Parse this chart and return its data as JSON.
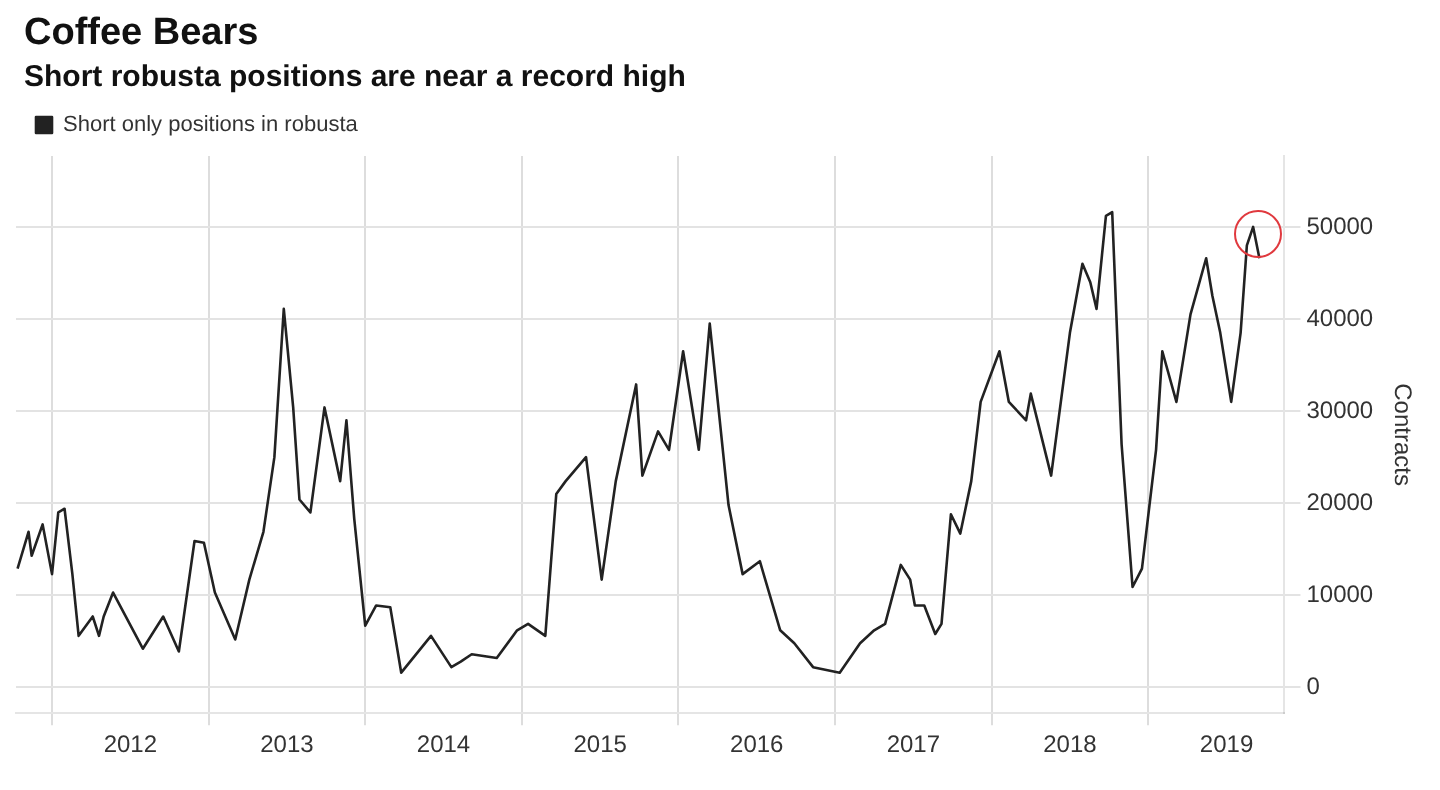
{
  "chart_data": {
    "type": "line",
    "title": "Coffee Bears",
    "subtitle": "Short robusta positions are near a record high",
    "ylabel": "Contracts",
    "x": [
      2011.78,
      2011.85,
      2011.87,
      2011.94,
      2012.0,
      2012.04,
      2012.08,
      2012.13,
      2012.17,
      2012.26,
      2012.3,
      2012.33,
      2012.39,
      2012.58,
      2012.71,
      2012.81,
      2012.91,
      2012.97,
      2013.04,
      2013.17,
      2013.26,
      2013.35,
      2013.42,
      2013.48,
      2013.54,
      2013.58,
      2013.65,
      2013.74,
      2013.84,
      2013.88,
      2013.93,
      2014.0,
      2014.07,
      2014.16,
      2014.23,
      2014.42,
      2014.55,
      2014.61,
      2014.68,
      2014.84,
      2014.97,
      2015.04,
      2015.15,
      2015.22,
      2015.28,
      2015.41,
      2015.51,
      2015.6,
      2015.73,
      2015.77,
      2015.87,
      2015.94,
      2016.03,
      2016.13,
      2016.2,
      2016.32,
      2016.41,
      2016.52,
      2016.65,
      2016.74,
      2016.86,
      2017.03,
      2017.16,
      2017.25,
      2017.32,
      2017.42,
      2017.48,
      2017.51,
      2017.57,
      2017.64,
      2017.68,
      2017.74,
      2017.8,
      2017.87,
      2017.93,
      2018.05,
      2018.11,
      2018.22,
      2018.25,
      2018.38,
      2018.5,
      2018.58,
      2018.63,
      2018.67,
      2018.73,
      2018.77,
      2018.83,
      2018.9,
      2018.96,
      2019.05,
      2019.09,
      2019.18,
      2019.27,
      2019.37,
      2019.41,
      2019.46,
      2019.53,
      2019.59,
      2019.63,
      2019.67,
      2019.71
    ],
    "series": [
      {
        "name": "Short only positions in robusta",
        "color": "#222222",
        "values": [
          12900,
          16900,
          14300,
          17700,
          12300,
          19000,
          19400,
          12300,
          5600,
          7700,
          5600,
          7700,
          10300,
          4200,
          7700,
          3900,
          15900,
          15700,
          10300,
          5200,
          11700,
          16900,
          25000,
          41100,
          30400,
          20400,
          19000,
          30400,
          22400,
          29000,
          18300,
          6700,
          8900,
          8700,
          1600,
          5600,
          2200,
          2800,
          3600,
          3200,
          6200,
          6900,
          5600,
          21000,
          22400,
          25000,
          11700,
          22400,
          32900,
          23000,
          27800,
          25800,
          36500,
          25800,
          39500,
          19800,
          12300,
          13700,
          6200,
          4800,
          2200,
          1600,
          4800,
          6200,
          6900,
          13300,
          11700,
          8900,
          8900,
          5800,
          6900,
          18800,
          16700,
          22400,
          31000,
          36500,
          31000,
          29000,
          31900,
          23000,
          38500,
          46000,
          44000,
          41100,
          51200,
          51600,
          26400,
          10900,
          12900,
          25800,
          36500,
          31000,
          40500,
          46600,
          42500,
          38500,
          31000,
          38500,
          48000,
          50000,
          46600
        ]
      }
    ],
    "xlim": [
      2011.77,
      2019.87
    ],
    "xticks": [
      {
        "value": 2012,
        "label": null
      },
      {
        "value": 2012.5,
        "label": "2012"
      },
      {
        "value": 2013,
        "label": null
      },
      {
        "value": 2013.5,
        "label": "2013"
      },
      {
        "value": 2014,
        "label": null
      },
      {
        "value": 2014.5,
        "label": "2014"
      },
      {
        "value": 2015,
        "label": null
      },
      {
        "value": 2015.5,
        "label": "2015"
      },
      {
        "value": 2016,
        "label": null
      },
      {
        "value": 2016.5,
        "label": "2016"
      },
      {
        "value": 2017,
        "label": null
      },
      {
        "value": 2017.5,
        "label": "2017"
      },
      {
        "value": 2018,
        "label": null
      },
      {
        "value": 2018.5,
        "label": "2018"
      },
      {
        "value": 2019,
        "label": null
      },
      {
        "value": 2019.5,
        "label": "2019"
      }
    ],
    "ylim": [
      -2800,
      57700
    ],
    "yticks": [
      0,
      10000,
      20000,
      30000,
      40000,
      50000
    ],
    "grid": true,
    "legend": "top left",
    "marker": "none",
    "line_style": "solid"
  }
}
